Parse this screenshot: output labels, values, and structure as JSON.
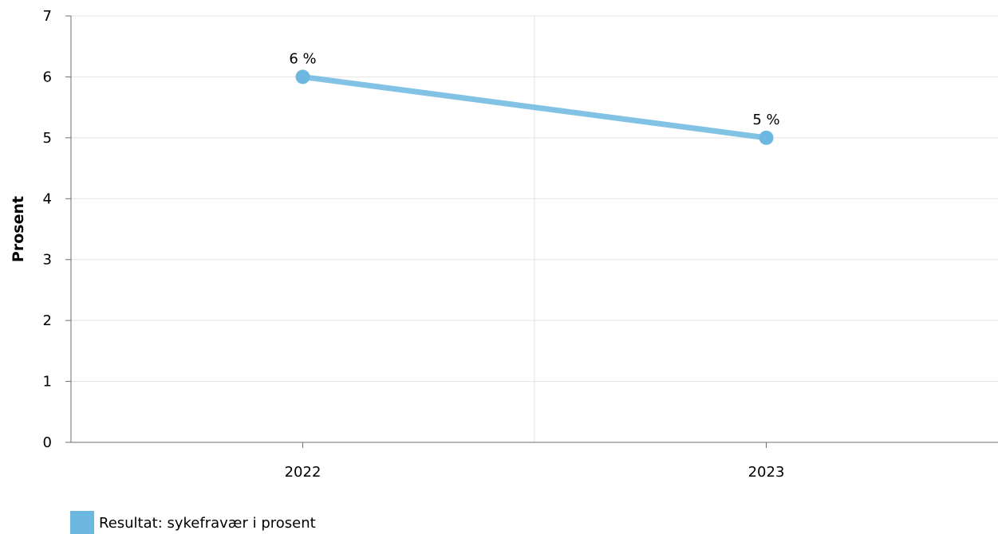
{
  "chart_data": {
    "type": "line",
    "x": [
      "2022",
      "2023"
    ],
    "series": [
      {
        "name": "Resultat: sykefravær i prosent",
        "values": [
          6,
          5
        ],
        "labels": [
          "6 %",
          "5 %"
        ],
        "color": "#6cb8e0"
      }
    ],
    "title": "",
    "xlabel": "",
    "ylabel": "Prosent",
    "ylim": [
      0,
      7
    ],
    "yticks": [
      "0",
      "1",
      "2",
      "3",
      "4",
      "5",
      "6",
      "7"
    ],
    "grid": true,
    "legend_position": "bottom-left"
  }
}
